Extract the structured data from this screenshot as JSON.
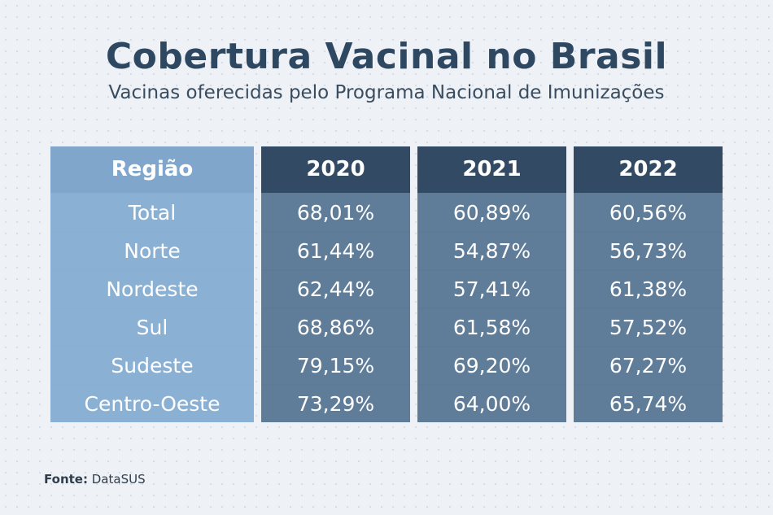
{
  "title": "Cobertura Vacinal no Brasil",
  "subtitle": "Vacinas oferecidas pelo Programa Nacional de Imunizações",
  "source": {
    "label": "Fonte:",
    "value": "DataSUS"
  },
  "chart_data": {
    "type": "table",
    "row_header": "Região",
    "columns": [
      "2020",
      "2021",
      "2022"
    ],
    "rows": [
      {
        "region": "Total",
        "values": [
          "68,01%",
          "60,89%",
          "60,56%"
        ]
      },
      {
        "region": "Norte",
        "values": [
          "61,44%",
          "54,87%",
          "56,73%"
        ]
      },
      {
        "region": "Nordeste",
        "values": [
          "62,44%",
          "57,41%",
          "61,38%"
        ]
      },
      {
        "region": "Sul",
        "values": [
          "68,86%",
          "61,58%",
          "57,52%"
        ]
      },
      {
        "region": "Sudeste",
        "values": [
          "79,15%",
          "69,20%",
          "67,27%"
        ]
      },
      {
        "region": "Centro-Oeste",
        "values": [
          "73,29%",
          "64,00%",
          "65,74%"
        ]
      }
    ]
  }
}
